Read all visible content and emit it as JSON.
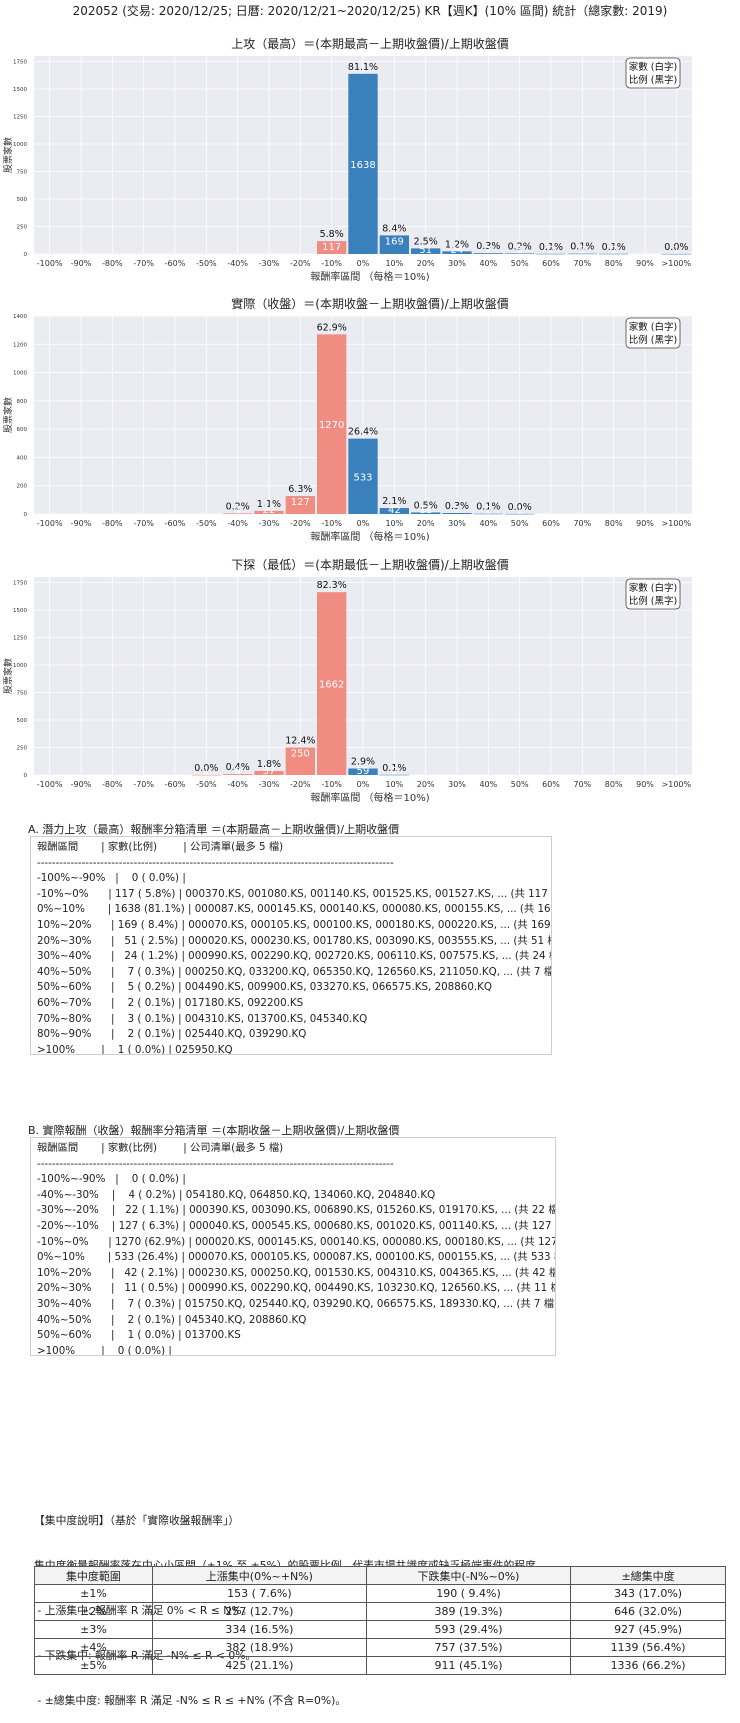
{
  "page_title": "202052 (交易: 2020/12/25; 日曆: 2020/12/21~2020/12/25) KR【週K】(10% 區間) 統計（總家數: 2019)",
  "legend_box": [
    "家數 (白字)",
    "比例 (黑字)"
  ],
  "colors": {
    "positive": "#3a80bd",
    "negative": "#f08c82",
    "panel_bg": "#ebebf2",
    "grid": "#ffffff"
  },
  "chart_data": [
    {
      "type": "bar",
      "title": "上攻（最高）＝(本期最高－上期收盤價)/上期收盤價",
      "xlabel": "報酬率區間 （每格＝10%)",
      "ylabel": "股票家數",
      "ylim": [
        0,
        1800
      ],
      "yticks": [
        0,
        250,
        500,
        750,
        1000,
        1250,
        1500,
        1750
      ],
      "categories": [
        "-100%",
        "-90%",
        "-80%",
        "-70%",
        "-60%",
        "-50%",
        "-40%",
        "-30%",
        "-20%",
        "-10%",
        "0%",
        "10%",
        "20%",
        "30%",
        "40%",
        "50%",
        "60%",
        "70%",
        "80%",
        "90%",
        ">100%"
      ],
      "bars": [
        {
          "bin": -1,
          "count": 117,
          "count_label": "117",
          "pct_label": "5.8%"
        },
        {
          "bin": 0,
          "count": 1638,
          "count_label": "1638",
          "pct_label": "81.1%"
        },
        {
          "bin": 1,
          "count": 169,
          "count_label": "169",
          "pct_label": "8.4%"
        },
        {
          "bin": 2,
          "count": 51,
          "count_label": "51",
          "pct_label": "2.5%"
        },
        {
          "bin": 3,
          "count": 24,
          "count_label": "24",
          "pct_label": "1.2%"
        },
        {
          "bin": 4,
          "count": 7,
          "count_label": "7",
          "pct_label": "0.3%"
        },
        {
          "bin": 5,
          "count": 5,
          "count_label": "5",
          "pct_label": "0.2%"
        },
        {
          "bin": 6,
          "count": 2,
          "count_label": "2",
          "pct_label": "0.1%"
        },
        {
          "bin": 7,
          "count": 3,
          "count_label": "3",
          "pct_label": "0.1%"
        },
        {
          "bin": 8,
          "count": 2,
          "count_label": "2",
          "pct_label": "0.1%"
        },
        {
          "bin": 10,
          "count": 1,
          "count_label": "1",
          "pct_label": "0.0%"
        }
      ]
    },
    {
      "type": "bar",
      "title": "實際（收盤）＝(本期收盤－上期收盤價)/上期收盤價",
      "xlabel": "報酬率區間 （每格＝10%)",
      "ylabel": "股票家數",
      "ylim": [
        0,
        1400
      ],
      "yticks": [
        0,
        200,
        400,
        600,
        800,
        1000,
        1200,
        1400
      ],
      "categories": [
        "-100%",
        "-90%",
        "-80%",
        "-70%",
        "-60%",
        "-50%",
        "-40%",
        "-30%",
        "-20%",
        "-10%",
        "0%",
        "10%",
        "20%",
        "30%",
        "40%",
        "50%",
        "60%",
        "70%",
        "80%",
        "90%",
        ">100%"
      ],
      "bars": [
        {
          "bin": -4,
          "count": 4,
          "count_label": "4",
          "pct_label": "0.2%"
        },
        {
          "bin": -3,
          "count": 22,
          "count_label": "22",
          "pct_label": "1.1%"
        },
        {
          "bin": -2,
          "count": 127,
          "count_label": "127",
          "pct_label": "6.3%"
        },
        {
          "bin": -1,
          "count": 1270,
          "count_label": "1270",
          "pct_label": "62.9%"
        },
        {
          "bin": 0,
          "count": 533,
          "count_label": "533",
          "pct_label": "26.4%"
        },
        {
          "bin": 1,
          "count": 42,
          "count_label": "42",
          "pct_label": "2.1%"
        },
        {
          "bin": 2,
          "count": 11,
          "count_label": "11",
          "pct_label": "0.5%"
        },
        {
          "bin": 3,
          "count": 7,
          "count_label": "7",
          "pct_label": "0.3%"
        },
        {
          "bin": 4,
          "count": 2,
          "count_label": "2",
          "pct_label": "0.1%"
        },
        {
          "bin": 5,
          "count": 1,
          "count_label": "1",
          "pct_label": "0.0%"
        }
      ]
    },
    {
      "type": "bar",
      "title": "下探（最低）＝(本期最低－上期收盤價)/上期收盤價",
      "xlabel": "報酬率區間 （每格＝10%)",
      "ylabel": "股票家數",
      "ylim": [
        0,
        1800
      ],
      "yticks": [
        0,
        250,
        500,
        750,
        1000,
        1250,
        1500,
        1750
      ],
      "categories": [
        "-100%",
        "-90%",
        "-80%",
        "-70%",
        "-60%",
        "-50%",
        "-40%",
        "-30%",
        "-20%",
        "-10%",
        "0%",
        "10%",
        "20%",
        "30%",
        "40%",
        "50%",
        "60%",
        "70%",
        "80%",
        "90%",
        ">100%"
      ],
      "bars": [
        {
          "bin": -5,
          "count": 1,
          "count_label": "1",
          "pct_label": "0.0%"
        },
        {
          "bin": -4,
          "count": 8,
          "count_label": "8",
          "pct_label": "0.4%"
        },
        {
          "bin": -3,
          "count": 37,
          "count_label": "37",
          "pct_label": "1.8%"
        },
        {
          "bin": -2,
          "count": 250,
          "count_label": "250",
          "pct_label": "12.4%"
        },
        {
          "bin": -1,
          "count": 1662,
          "count_label": "1662",
          "pct_label": "82.3%"
        },
        {
          "bin": 0,
          "count": 59,
          "count_label": "59",
          "pct_label": "2.9%"
        },
        {
          "bin": 1,
          "count": 2,
          "count_label": "2",
          "pct_label": "0.1%"
        }
      ]
    }
  ],
  "list_a": {
    "title": "A. 潛力上攻（最高）報酬率分箱清單 ＝(本期最高－上期收盤價)/上期收盤價",
    "lines": [
      "報酬區間       | 家數(比例)        | 公司清單(最多 5 檔)",
      "------------------------------------------------------------------------------------------------",
      "-100%~-90%   |    0 ( 0.0%) |",
      "-10%~0%      | 117 ( 5.8%) | 000370.KS, 001080.KS, 001140.KS, 001525.KS, 001527.KS, ... (共 117 檔)",
      "0%~10%       | 1638 (81.1%) | 000087.KS, 000145.KS, 000140.KS, 000080.KS, 000155.KS, ... (共 1638 檔)",
      "10%~20%      | 169 ( 8.4%) | 000070.KS, 000105.KS, 000100.KS, 000180.KS, 000220.KS, ... (共 169 檔)",
      "20%~30%      |   51 ( 2.5%) | 000020.KS, 000230.KS, 001780.KS, 003090.KS, 003555.KS, ... (共 51 檔)",
      "30%~40%      |   24 ( 1.2%) | 000990.KS, 002290.KQ, 002720.KS, 006110.KS, 007575.KS, ... (共 24 檔)",
      "40%~50%      |    7 ( 0.3%) | 000250.KQ, 033200.KQ, 065350.KQ, 126560.KS, 211050.KQ, ... (共 7 檔)",
      "50%~60%      |    5 ( 0.2%) | 004490.KS, 009900.KS, 033270.KS, 066575.KS, 208860.KQ",
      "60%~70%      |    2 ( 0.1%) | 017180.KS, 092200.KS",
      "70%~80%      |    3 ( 0.1%) | 004310.KS, 013700.KS, 045340.KQ",
      "80%~90%      |    2 ( 0.1%) | 025440.KQ, 039290.KQ",
      ">100%        |    1 ( 0.0%) | 025950.KQ"
    ]
  },
  "list_b": {
    "title": "B. 實際報酬（收盤）報酬率分箱清單 ＝(本期收盤－上期收盤價)/上期收盤價",
    "lines": [
      "報酬區間       | 家數(比例)        | 公司清單(最多 5 檔)",
      "------------------------------------------------------------------------------------------------",
      "-100%~-90%   |    0 ( 0.0%) |",
      "-40%~-30%    |    4 ( 0.2%) | 054180.KQ, 064850.KQ, 134060.KQ, 204840.KQ",
      "-30%~-20%    |   22 ( 1.1%) | 000390.KS, 003090.KS, 006890.KS, 015260.KS, 019170.KS, ... (共 22 檔)",
      "-20%~-10%    | 127 ( 6.3%) | 000040.KS, 000545.KS, 000680.KS, 001020.KS, 001140.KS, ... (共 127 檔)",
      "-10%~0%      | 1270 (62.9%) | 000020.KS, 000145.KS, 000140.KS, 000080.KS, 000180.KS, ... (共 1270 檔)",
      "0%~10%       | 533 (26.4%) | 000070.KS, 000105.KS, 000087.KS, 000100.KS, 000155.KS, ... (共 533 檔)",
      "10%~20%      |   42 ( 2.1%) | 000230.KS, 000250.KQ, 001530.KS, 004310.KS, 004365.KS, ... (共 42 檔)",
      "20%~30%      |   11 ( 0.5%) | 000990.KS, 002290.KQ, 004490.KS, 103230.KQ, 126560.KS, ... (共 11 檔)",
      "30%~40%      |    7 ( 0.3%) | 015750.KQ, 025440.KQ, 039290.KQ, 066575.KS, 189330.KQ, ... (共 7 檔)",
      "40%~50%      |    2 ( 0.1%) | 045340.KQ, 208860.KQ",
      "50%~60%      |    1 ( 0.0%) | 013700.KS",
      ">100%        |    0 ( 0.0%) |"
    ]
  },
  "note": {
    "heading": "【集中度說明】（基於「實際收盤報酬率」）",
    "lines": [
      "集中度衡量報酬率落在中心小區間（±1% 至 ±5%）的股票比例，代表市場共識度或缺乏極端事件的程度。",
      " - 上漲集中: 報酬率 R 滿足 0% < R ≤ N%。",
      " - 下跌集中: 報酬率 R 滿足 -N% ≤ R < 0%。",
      " - ±總集中度: 報酬率 R 滿足 -N% ≤ R ≤ +N% (不含 R=0%)。"
    ]
  },
  "concentration_table": {
    "headers": [
      "集中度範圍",
      "上漲集中(0%~+N%)",
      "下跌集中(-N%~0%)",
      "±總集中度"
    ],
    "rows": [
      [
        "±1%",
        "153 ( 7.6%)",
        "190 ( 9.4%)",
        "343 (17.0%)"
      ],
      [
        "±2%",
        "257 (12.7%)",
        "389 (19.3%)",
        "646 (32.0%)"
      ],
      [
        "±3%",
        "334 (16.5%)",
        "593 (29.4%)",
        "927 (45.9%)"
      ],
      [
        "±4%",
        "382 (18.9%)",
        "757 (37.5%)",
        "1139 (56.4%)"
      ],
      [
        "±5%",
        "425 (21.1%)",
        "911 (45.1%)",
        "1336 (66.2%)"
      ]
    ]
  }
}
